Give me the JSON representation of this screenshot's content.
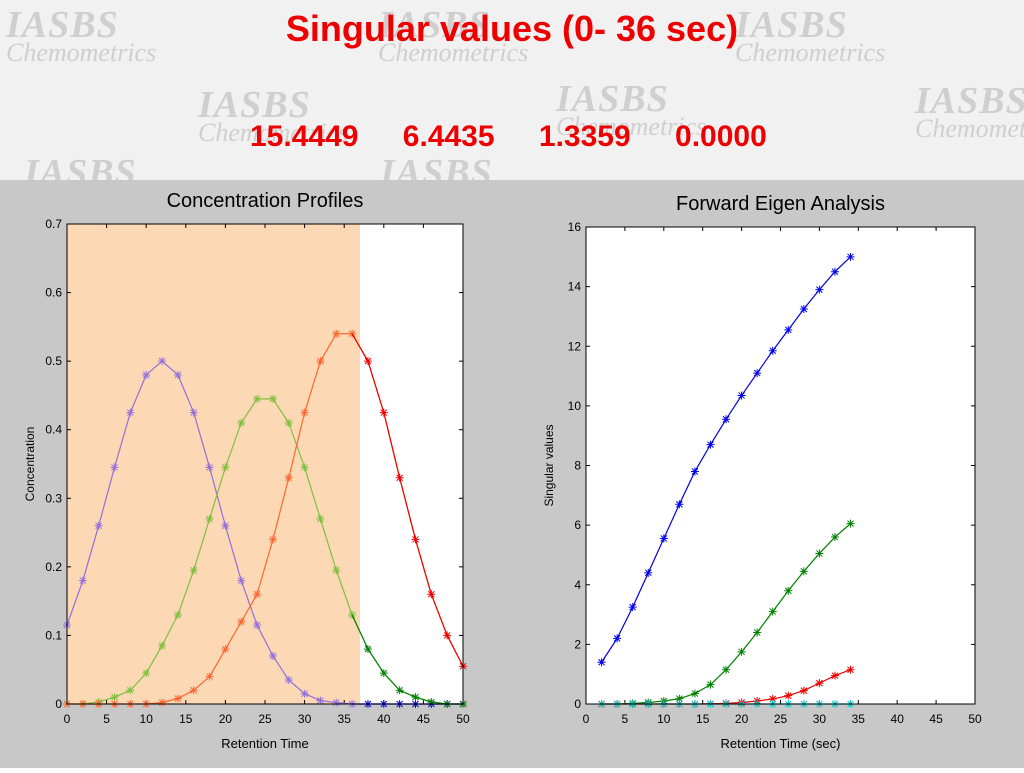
{
  "slide": {
    "title": "Singular values  (0- 36 sec)",
    "values": [
      "15.4449",
      "6.4435",
      "1.3359",
      "0.0000"
    ],
    "watermark_line1": "IASBS",
    "watermark_line2": "Chemometrics"
  },
  "chart_data": [
    {
      "type": "line",
      "title": "Concentration Profiles",
      "xlabel": "Retention Time",
      "ylabel": "Concentration",
      "xlim": [
        0,
        50
      ],
      "ylim": [
        0,
        0.7
      ],
      "xticks": [
        0,
        5,
        10,
        15,
        20,
        25,
        30,
        35,
        40,
        45,
        50
      ],
      "yticks": [
        0,
        0.1,
        0.2,
        0.3,
        0.4,
        0.5,
        0.6,
        0.7
      ],
      "highlight_range": [
        0,
        37
      ],
      "highlight_color": "#fcd9b4",
      "marker": "*",
      "x": [
        0,
        2,
        4,
        6,
        8,
        10,
        12,
        14,
        16,
        18,
        20,
        22,
        24,
        26,
        28,
        30,
        32,
        34,
        36,
        38,
        40,
        42,
        44,
        46,
        48,
        50
      ],
      "series": [
        {
          "color": "#9370db",
          "values": [
            0.115,
            0.18,
            0.26,
            0.345,
            0.425,
            0.48,
            0.5,
            0.48,
            0.425,
            0.345,
            0.26,
            0.18,
            0.115,
            0.07,
            0.035,
            0.015,
            0.005,
            0.002,
            0,
            0,
            0,
            0,
            0,
            0,
            0,
            0
          ]
        },
        {
          "color": "#7fbf3f",
          "values": [
            0,
            0,
            0.003,
            0.01,
            0.02,
            0.045,
            0.085,
            0.13,
            0.195,
            0.27,
            0.345,
            0.41,
            0.445,
            0.445,
            0.41,
            0.345,
            0.27,
            0.195,
            0.13,
            0.08,
            0.045,
            0.02,
            0.01,
            0.003,
            0,
            0
          ]
        },
        {
          "color": "#ff6633",
          "values": [
            0,
            0,
            0,
            0,
            0,
            0,
            0.002,
            0.008,
            0.02,
            0.04,
            0.08,
            0.12,
            0.16,
            0.24,
            0.33,
            0.425,
            0.5,
            0.54,
            0.54,
            0.5,
            0.425,
            0.33,
            0.24,
            0.16,
            0.1,
            0.055
          ]
        }
      ]
    },
    {
      "type": "line",
      "title": "Forward Eigen Analysis",
      "xlabel": "Retention Time (sec)",
      "ylabel": "Singular values",
      "xlim": [
        0,
        50
      ],
      "ylim": [
        0,
        16
      ],
      "xticks": [
        0,
        5,
        10,
        15,
        20,
        25,
        30,
        35,
        40,
        45,
        50
      ],
      "yticks": [
        0,
        2,
        4,
        6,
        8,
        10,
        12,
        14,
        16
      ],
      "marker": "*",
      "x": [
        2,
        4,
        6,
        8,
        10,
        12,
        14,
        16,
        18,
        20,
        22,
        24,
        26,
        28,
        30,
        32,
        34
      ],
      "series": [
        {
          "color": "#0000ee",
          "values": [
            1.4,
            2.2,
            3.25,
            4.4,
            5.55,
            6.7,
            7.8,
            8.7,
            9.55,
            10.35,
            11.1,
            11.85,
            12.55,
            13.25,
            13.9,
            14.5,
            15.0
          ]
        },
        {
          "color": "#008000",
          "values": [
            0.0,
            0.0,
            0.02,
            0.05,
            0.1,
            0.18,
            0.35,
            0.65,
            1.15,
            1.75,
            2.4,
            3.1,
            3.8,
            4.45,
            5.05,
            5.6,
            6.05
          ]
        },
        {
          "color": "#ee0000",
          "values": [
            0,
            0,
            0,
            0,
            0,
            0,
            0,
            0.01,
            0.02,
            0.05,
            0.1,
            0.17,
            0.28,
            0.45,
            0.7,
            0.95,
            1.15
          ]
        },
        {
          "color": "#00cccc",
          "values": [
            0,
            0,
            0,
            0,
            0,
            0,
            0,
            0,
            0,
            0,
            0,
            0,
            0,
            0,
            0,
            0,
            0
          ]
        }
      ]
    }
  ]
}
